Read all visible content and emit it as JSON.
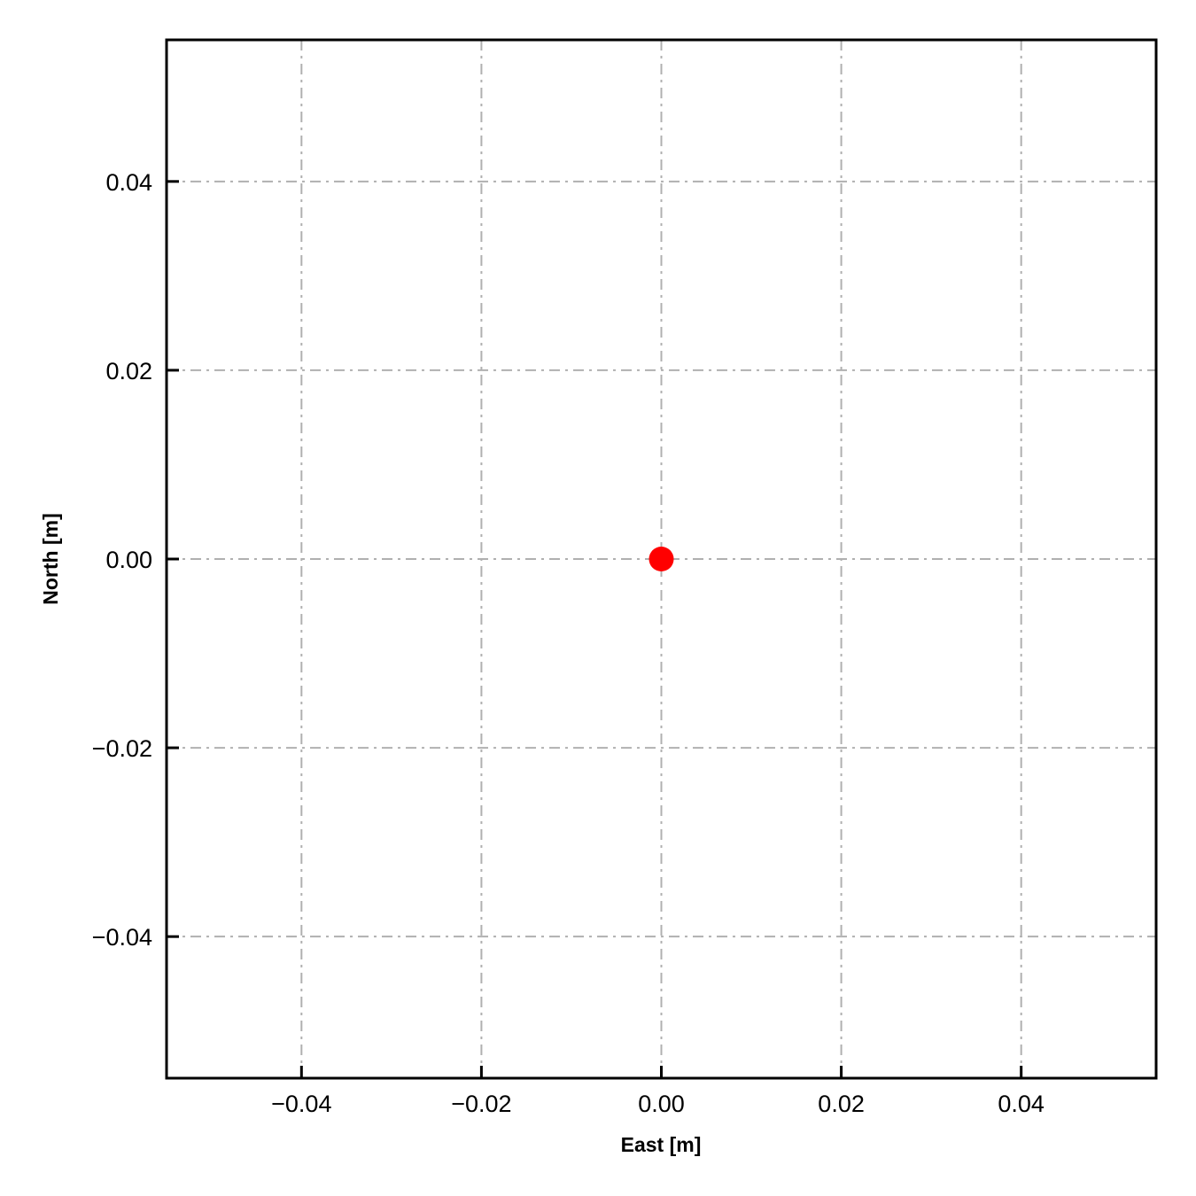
{
  "chart_data": {
    "type": "scatter",
    "title": "",
    "xlabel": "East [m]",
    "ylabel": "North [m]",
    "xlim": [
      -0.055,
      0.055
    ],
    "ylim": [
      -0.055,
      0.055
    ],
    "xticks": [
      -0.04,
      -0.02,
      0.0,
      0.02,
      0.04
    ],
    "yticks": [
      -0.04,
      -0.02,
      0.0,
      0.02,
      0.04
    ],
    "xtick_labels": [
      "−0.04",
      "−0.02",
      "0.00",
      "0.02",
      "0.04"
    ],
    "ytick_labels": [
      "−0.04",
      "−0.02",
      "0.00",
      "0.02",
      "0.04"
    ],
    "grid": true,
    "grid_style": "dash-dot",
    "grid_color": "#b0b0b0",
    "series": [
      {
        "x": [
          0.0
        ],
        "y": [
          0.0
        ],
        "color": "#ff0000",
        "marker": "circle"
      }
    ]
  }
}
